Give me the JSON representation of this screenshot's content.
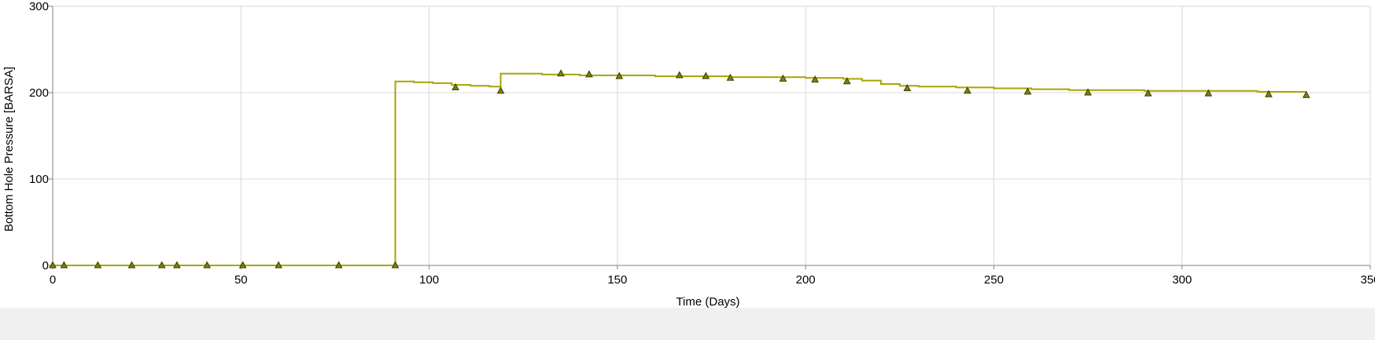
{
  "chart_data": {
    "type": "line",
    "xlabel": "Time (Days)",
    "ylabel": "Bottom Hole Pressure [BARSA]",
    "xlim": [
      0,
      350
    ],
    "ylim": [
      0,
      300
    ],
    "x_ticks": [
      0,
      50,
      100,
      150,
      200,
      250,
      300,
      350
    ],
    "y_ticks": [
      0,
      100,
      200,
      300
    ],
    "x_tick_labels": [
      "0",
      "50",
      "100",
      "150",
      "200",
      "250",
      "300",
      "350"
    ],
    "y_tick_labels": [
      "0",
      "100",
      "200",
      "300"
    ],
    "grid": true,
    "series": [
      {
        "line_style": "step",
        "marker": "triangle",
        "color": "#a6a600",
        "marker_fill": "#808000",
        "x": [
          0,
          91,
          91,
          96,
          101,
          106,
          111,
          116,
          119,
          119,
          120,
          130,
          140,
          160,
          180,
          200,
          210,
          215,
          220,
          225,
          230,
          240,
          250,
          260,
          270,
          280,
          290,
          300,
          310,
          320,
          333
        ],
        "y": [
          0,
          0,
          213,
          212,
          211,
          209,
          208,
          207,
          206,
          222,
          222,
          221,
          220,
          219,
          218,
          217,
          216,
          214,
          210,
          208,
          207,
          206,
          205,
          204,
          203,
          203,
          202,
          202,
          202,
          201,
          201
        ]
      }
    ],
    "markers": {
      "x": [
        0,
        3,
        12,
        21,
        29,
        33,
        41,
        50.5,
        60,
        76,
        91,
        107,
        119,
        135,
        142.5,
        150.5,
        166.5,
        173.5,
        180,
        194,
        202.5,
        211,
        227,
        243,
        259,
        275,
        291,
        307,
        323,
        333
      ],
      "y": [
        0,
        0,
        0,
        0,
        0,
        0,
        0,
        0,
        0,
        0,
        0,
        206,
        202,
        222,
        221,
        219,
        220,
        219,
        217,
        216,
        215,
        213,
        205,
        202,
        201,
        200,
        199,
        199,
        198,
        197
      ]
    }
  }
}
